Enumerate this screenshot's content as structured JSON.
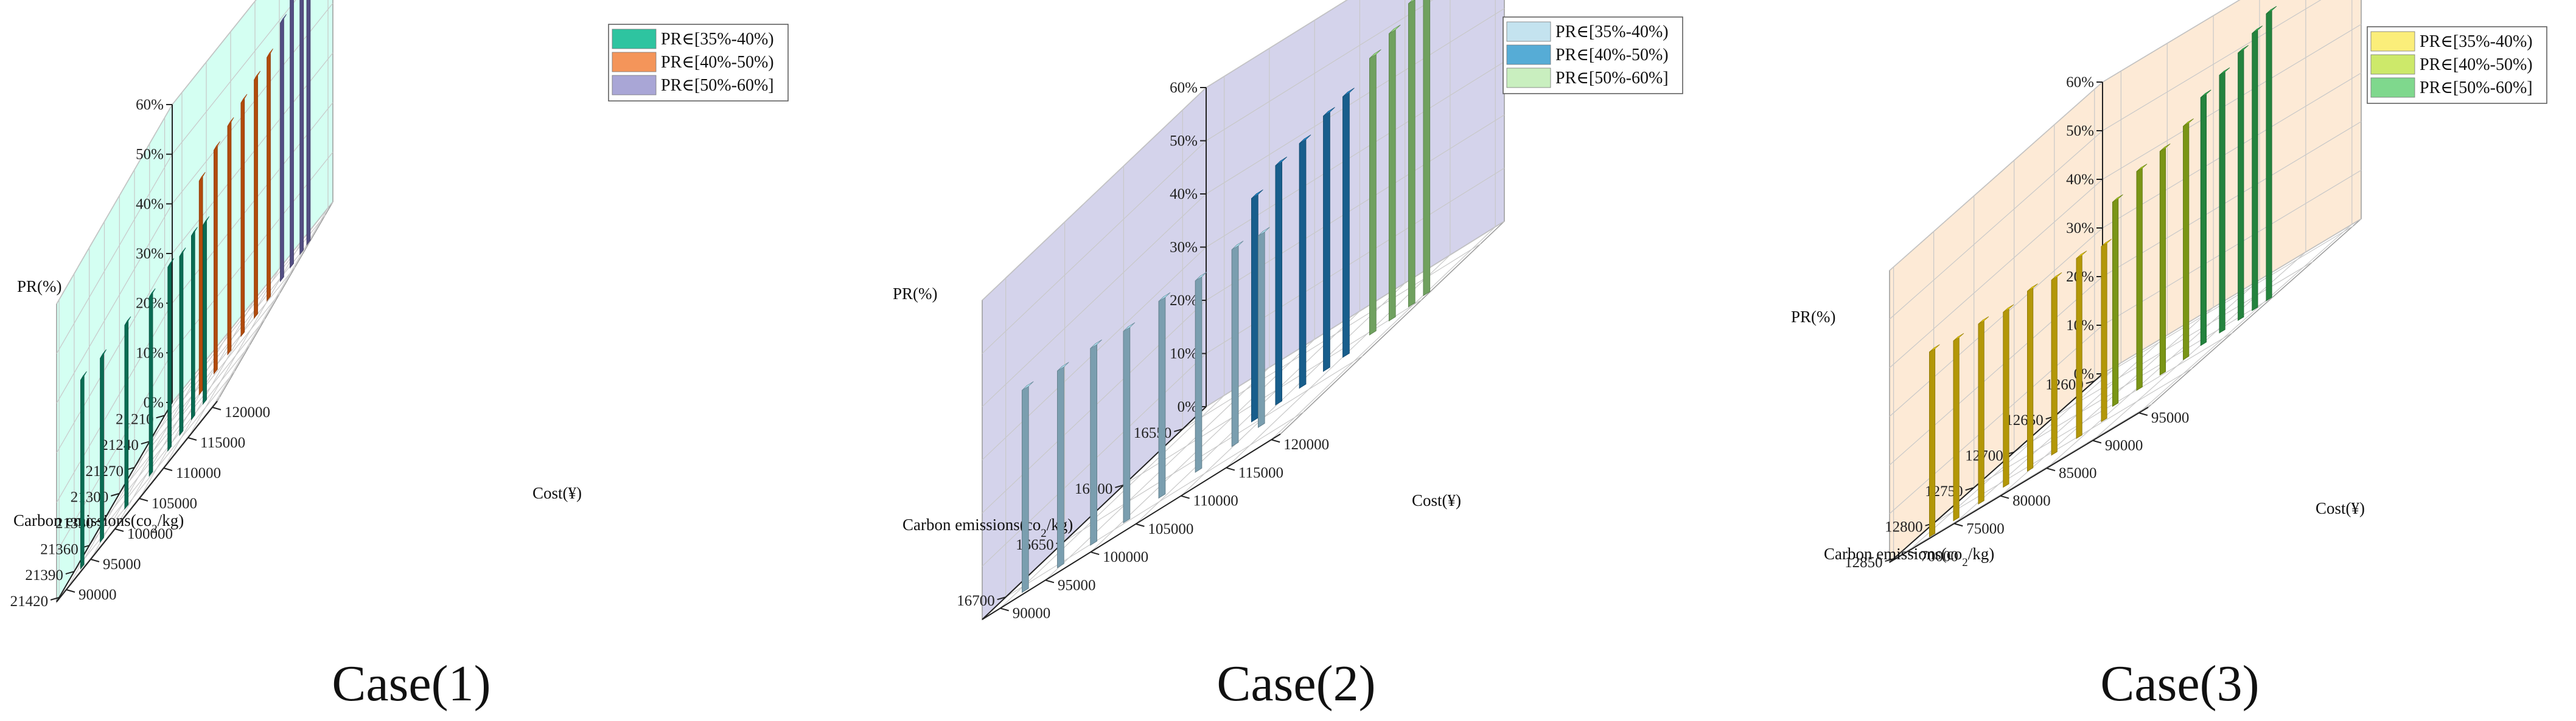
{
  "chart_data": [
    {
      "type": "bar3d",
      "caption": "Case(1)",
      "x_axis": {
        "label": "Carbon emissions(co2/kg)",
        "ticks": [
          "21210",
          "21240",
          "21270",
          "21300",
          "21330",
          "21360",
          "21390",
          "21420"
        ],
        "range": [
          21195,
          21425
        ]
      },
      "y_axis": {
        "label": "Cost(¥)",
        "ticks": [
          "90000",
          "95000",
          "100000",
          "105000",
          "110000",
          "115000",
          "120000"
        ],
        "range": [
          88000,
          121000
        ]
      },
      "z_axis": {
        "label": "PR(%)",
        "ticks": [
          "0%",
          "10%",
          "20%",
          "30%",
          "40%",
          "50%",
          "60%"
        ],
        "range": [
          0,
          60
        ]
      },
      "wall_color": "#ccfff0",
      "legend": [
        {
          "label": "PR∈[35%-40%)",
          "color": "#2ec4a0"
        },
        {
          "label": "PR∈[40%-50%)",
          "color": "#f4955a"
        },
        {
          "label": "PR∈[50%-60%]",
          "color": "#a9a6d6"
        }
      ],
      "bar_colors": [
        "#0b8a6b",
        "#e4600f",
        "#6a64a8"
      ],
      "series": [
        {
          "name": "PR∈[35%-40%)",
          "points": [
            [
              21410,
              92000,
              38
            ],
            [
              21400,
              95000,
              37
            ],
            [
              21390,
              99000,
              37
            ],
            [
              21380,
              103000,
              36
            ],
            [
              21372,
              106000,
              37
            ],
            [
              21368,
              108000,
              36
            ],
            [
              21364,
              110000,
              37
            ],
            [
              21360,
              112000,
              36
            ]
          ]
        },
        {
          "name": "PR∈[40%-50%)",
          "points": [
            [
              21300,
              105000,
              43
            ],
            [
              21290,
              107000,
              45
            ],
            [
              21282,
              109000,
              46
            ],
            [
              21275,
              111000,
              47
            ],
            [
              21268,
              113000,
              48
            ],
            [
              21262,
              115000,
              49
            ]
          ]
        },
        {
          "name": "PR∈[50%-60%]",
          "points": [
            [
              21250,
              116500,
              52
            ],
            [
              21245,
              118000,
              54
            ],
            [
              21240,
              119500,
              57
            ],
            [
              21236,
              120500,
              59
            ]
          ]
        }
      ]
    },
    {
      "type": "bar3d",
      "caption": "Case(2)",
      "x_axis": {
        "label": "Carbon emissions(co2/kg)",
        "ticks": [
          "16550",
          "16600",
          "16650",
          "16700"
        ],
        "range": [
          16530,
          16720
        ]
      },
      "y_axis": {
        "label": "Cost(¥)",
        "ticks": [
          "90000",
          "95000",
          "100000",
          "105000",
          "110000",
          "115000",
          "120000"
        ],
        "range": [
          88000,
          121000
        ]
      },
      "z_axis": {
        "label": "PR(%)",
        "ticks": [
          "0%",
          "10%",
          "20%",
          "30%",
          "40%",
          "50%",
          "60%"
        ],
        "range": [
          0,
          60
        ]
      },
      "wall_color": "#cccbe8",
      "legend": [
        {
          "label": "PR∈[35%-40%)",
          "color": "#c4e3ef"
        },
        {
          "label": "PR∈[40%-50%)",
          "color": "#56acd6"
        },
        {
          "label": "PR∈[50%-60%]",
          "color": "#c9efbf"
        }
      ],
      "bar_colors": [
        "#9ccbe0",
        "#1f78b4",
        "#8fce7a"
      ],
      "series": [
        {
          "name": "PR∈[35%-40%)",
          "points": [
            [
              16712,
              92000,
              38
            ],
            [
              16705,
              95000,
              37
            ],
            [
              16700,
              98000,
              37
            ],
            [
              16695,
              101000,
              36
            ],
            [
              16688,
              104000,
              37
            ],
            [
              16680,
              107000,
              36
            ],
            [
              16672,
              110000,
              37
            ],
            [
              16665,
              112000,
              36
            ]
          ]
        },
        {
          "name": "PR∈[40%-50%)",
          "points": [
            [
              16640,
              108000,
              42
            ],
            [
              16635,
              110000,
              45
            ],
            [
              16630,
              112000,
              46
            ],
            [
              16625,
              114000,
              48
            ],
            [
              16620,
              115500,
              49
            ]
          ]
        },
        {
          "name": "PR∈[50%-60%]",
          "points": [
            [
              16605,
              116500,
              52
            ],
            [
              16600,
              118000,
              54
            ],
            [
              16595,
              119500,
              57
            ],
            [
              16590,
              120500,
              59
            ]
          ]
        }
      ]
    },
    {
      "type": "bar3d",
      "caption": "Case(3)",
      "x_axis": {
        "label": "Carbon emissions(co2/kg)",
        "ticks": [
          "12600",
          "12650",
          "12700",
          "12750",
          "12800",
          "12850"
        ],
        "range": [
          12590,
          12855
        ]
      },
      "y_axis": {
        "label": "Cost(¥)",
        "ticks": [
          "70000",
          "75000",
          "80000",
          "85000",
          "90000",
          "95000"
        ],
        "range": [
          68000,
          96000
        ]
      },
      "z_axis": {
        "label": "PR(%)",
        "ticks": [
          "0%",
          "10%",
          "20%",
          "30%",
          "40%",
          "50%",
          "60%"
        ],
        "range": [
          0,
          60
        ]
      },
      "wall_color": "#fde6cf",
      "legend": [
        {
          "label": "PR∈[35%-40%)",
          "color": "#fbee7a"
        },
        {
          "label": "PR∈[40%-50%)",
          "color": "#cde96a"
        },
        {
          "label": "PR∈[50%-60%]",
          "color": "#7fd88d"
        }
      ],
      "bar_colors": [
        "#e6c20a",
        "#9cbf1c",
        "#2ea84f"
      ],
      "series": [
        {
          "name": "PR∈[35%-40%)",
          "points": [
            [
              12845,
              72000,
              38
            ],
            [
              12838,
              74000,
              37
            ],
            [
              12830,
              76000,
              37
            ],
            [
              12822,
              78000,
              36
            ],
            [
              12815,
              80000,
              37
            ],
            [
              12808,
              82000,
              36
            ],
            [
              12800,
              84000,
              37
            ],
            [
              12792,
              86000,
              36
            ]
          ]
        },
        {
          "name": "PR∈[40%-50%)",
          "points": [
            [
              12755,
              84000,
              42
            ],
            [
              12748,
              86000,
              45
            ],
            [
              12742,
              88000,
              46
            ],
            [
              12736,
              90000,
              48
            ]
          ]
        },
        {
          "name": "PR∈[50%-60%]",
          "points": [
            [
              12720,
              90500,
              51
            ],
            [
              12714,
              92000,
              53
            ],
            [
              12708,
              93500,
              55
            ],
            [
              12702,
              94500,
              57
            ],
            [
              12696,
              95500,
              59
            ]
          ]
        }
      ]
    }
  ]
}
